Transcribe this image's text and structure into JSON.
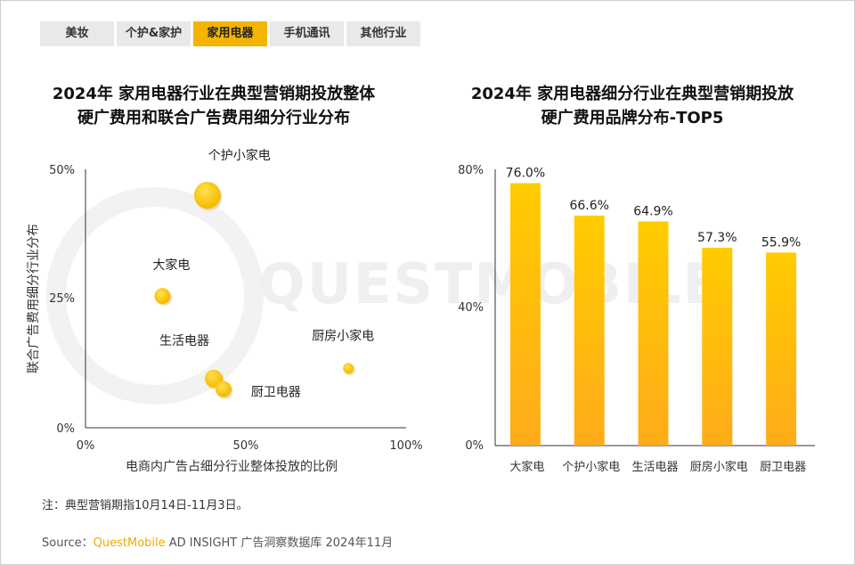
{
  "tabs": [
    {
      "label": "美妆",
      "active": false
    },
    {
      "label": "个护&家护",
      "active": false
    },
    {
      "label": "家用电器",
      "active": true
    },
    {
      "label": "手机通讯",
      "active": false
    },
    {
      "label": "其他行业",
      "active": false
    }
  ],
  "watermark": "QUESTMOBILE",
  "colors": {
    "accent": "#f5b400",
    "bar_top": "#ffcc00",
    "bar_bottom": "#ffab1a"
  },
  "chart_data": [
    {
      "type": "scatter",
      "title": [
        "2024年 家用电器行业在典型营销期投放整体",
        "硬广费用和联合广告费用细分行业分布"
      ],
      "xlabel": "电商内广告占细分行业整体投放的比例",
      "ylabel": "联合广告费用细分行业分布",
      "xlim": [
        0,
        100
      ],
      "ylim": [
        0,
        50
      ],
      "xticks": [
        "0%",
        "50%",
        "100%"
      ],
      "yticks": [
        "0%",
        "25%",
        "50%"
      ],
      "grid": false,
      "points": [
        {
          "label": "个护小家电",
          "x": 38,
          "y": 45
        },
        {
          "label": "大家电",
          "x": 24,
          "y": 25.5
        },
        {
          "label": "厨房小家电",
          "x": 82,
          "y": 11.5
        },
        {
          "label": "生活电器",
          "x": 40,
          "y": 9.5
        },
        {
          "label": "厨卫电器",
          "x": 43,
          "y": 7.5
        }
      ]
    },
    {
      "type": "bar",
      "title": [
        "2024年 家用电器细分行业在典型营销期投放",
        "硬广费用品牌分布-TOP5"
      ],
      "categories": [
        "大家电",
        "个护小家电",
        "生活电器",
        "厨房小家电",
        "厨卫电器"
      ],
      "values": [
        76.0,
        66.6,
        64.9,
        57.3,
        55.9
      ],
      "value_labels": [
        "76.0%",
        "66.6%",
        "64.9%",
        "57.3%",
        "55.9%"
      ],
      "ylim": [
        0,
        80
      ],
      "yticks": [
        "0%",
        "40%",
        "80%"
      ],
      "grid": false
    }
  ],
  "footer": {
    "note": "注：典型营销期指10月14日-11月3日。",
    "source_prefix": "Source：",
    "source_brand": "QuestMobile",
    "source_rest": " AD INSIGHT 广告洞察数据库 2024年11月"
  }
}
